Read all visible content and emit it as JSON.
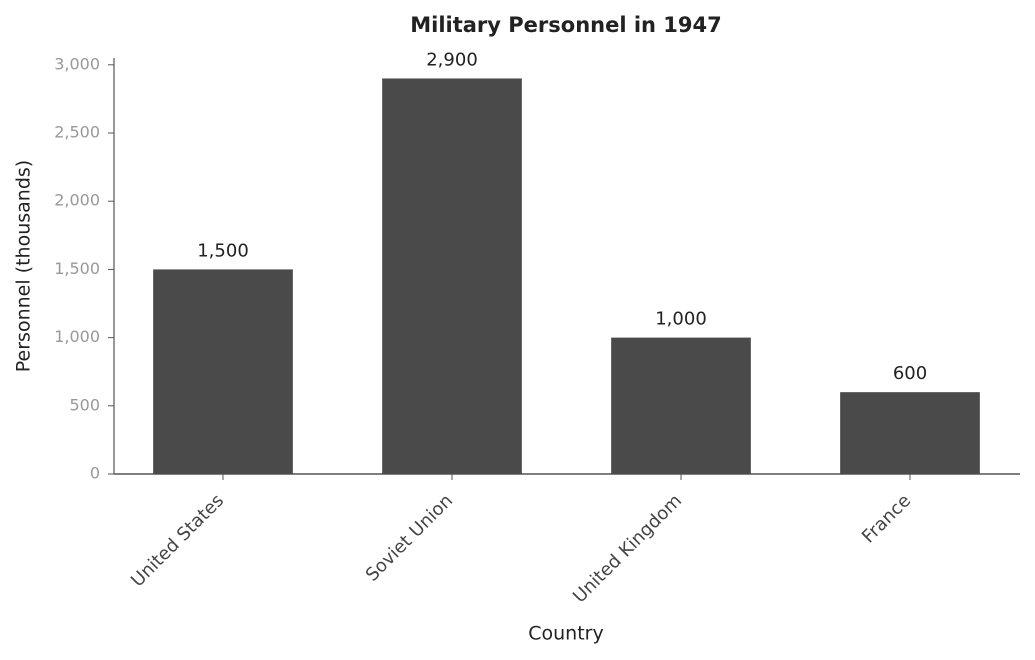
{
  "chart_data": {
    "type": "bar",
    "title": "Military Personnel in 1947",
    "x_label": "Country",
    "y_label": "Personnel (thousands)",
    "categories": [
      "United States",
      "Soviet Union",
      "United Kingdom",
      "France"
    ],
    "values": [
      1500,
      2900,
      1000,
      600
    ],
    "value_labels": [
      "1,500",
      "2,900",
      "1,000",
      "600"
    ],
    "color": "#4a4a4a",
    "ylim": [
      0,
      3050
    ],
    "yticks": [
      0,
      500,
      {
        "value": 1000,
        "label": "1,000"
      },
      {
        "value": 1500,
        "label": "1,500"
      },
      {
        "value": 2000,
        "label": "2,000"
      },
      {
        "value": 2500,
        "label": "2,500"
      },
      {
        "value": 3000,
        "label": "3,000"
      }
    ],
    "grid": false
  }
}
